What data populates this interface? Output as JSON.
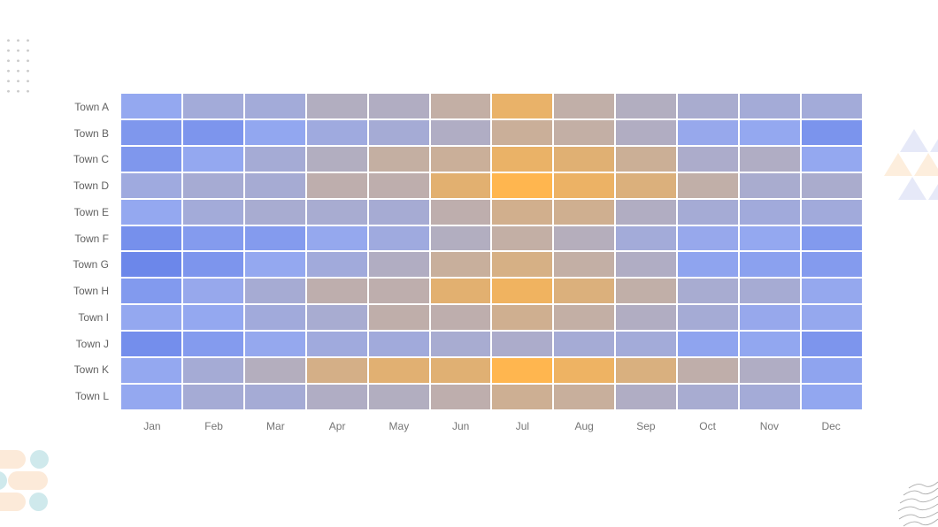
{
  "page": {
    "background": "#ffffff"
  },
  "chart_data": {
    "type": "heatmap",
    "title": "",
    "xlabel": "",
    "ylabel": "",
    "x_categories": [
      "Jan",
      "Feb",
      "Mar",
      "Apr",
      "May",
      "Jun",
      "Jul",
      "Aug",
      "Sep",
      "Oct",
      "Nov",
      "Dec"
    ],
    "y_categories": [
      "Town A",
      "Town B",
      "Town C",
      "Town D",
      "Town E",
      "Town F",
      "Town G",
      "Town H",
      "Town I",
      "Town J",
      "Town K",
      "Town L"
    ],
    "rows": [
      {
        "label": "Town A",
        "values": [
          25,
          36,
          36,
          48,
          47,
          58,
          82,
          57,
          48,
          41,
          37,
          36
        ]
      },
      {
        "label": "Town B",
        "values": [
          13,
          12,
          24,
          33,
          38,
          46,
          62,
          58,
          47,
          27,
          25,
          11
        ]
      },
      {
        "label": "Town C",
        "values": [
          13,
          25,
          38,
          48,
          59,
          62,
          83,
          75,
          63,
          43,
          46,
          25
        ]
      },
      {
        "label": "Town D",
        "values": [
          33,
          39,
          39,
          55,
          55,
          77,
          100,
          85,
          72,
          57,
          41,
          42
        ]
      },
      {
        "label": "Town E",
        "values": [
          25,
          36,
          40,
          40,
          39,
          55,
          66,
          65,
          47,
          38,
          35,
          35
        ]
      },
      {
        "label": "Town F",
        "values": [
          8,
          16,
          16,
          26,
          33,
          48,
          58,
          50,
          36,
          27,
          25,
          15
        ]
      },
      {
        "label": "Town G",
        "values": [
          2,
          12,
          25,
          35,
          47,
          61,
          69,
          58,
          46,
          22,
          20,
          16
        ]
      },
      {
        "label": "Town H",
        "values": [
          15,
          27,
          39,
          55,
          55,
          77,
          88,
          72,
          57,
          40,
          39,
          26
        ]
      },
      {
        "label": "Town I",
        "values": [
          25,
          25,
          35,
          40,
          56,
          55,
          65,
          58,
          47,
          38,
          27,
          26
        ]
      },
      {
        "label": "Town J",
        "values": [
          7,
          16,
          26,
          34,
          35,
          40,
          43,
          38,
          36,
          22,
          24,
          12
        ]
      },
      {
        "label": "Town K",
        "values": [
          25,
          38,
          49,
          68,
          76,
          75,
          100,
          86,
          71,
          56,
          46,
          22
        ]
      },
      {
        "label": "Town L",
        "values": [
          25,
          38,
          38,
          46,
          48,
          55,
          64,
          61,
          46,
          40,
          37,
          24
        ]
      }
    ],
    "value_range": [
      0,
      100
    ],
    "color_scale": [
      {
        "stop": 0.0,
        "color": "#6884ea"
      },
      {
        "stop": 0.25,
        "color": "#94a8f0"
      },
      {
        "stop": 0.5,
        "color": "#b5aebc"
      },
      {
        "stop": 0.75,
        "color": "#e0b073"
      },
      {
        "stop": 1.0,
        "color": "#ffb64f"
      }
    ],
    "grid_line_color": "#ffffff",
    "x_axis_label_color": "#757575",
    "y_axis_label_color": "#616161",
    "legend": "none"
  },
  "decorations": {
    "dot_grid": {
      "icon": "dot-grid-icon",
      "color": "#cccccc",
      "rows": 6,
      "cols": 3
    },
    "triangles": {
      "icon": "triangles-icon",
      "lavender": "#e6e9f8",
      "peach": "#fdeedd"
    },
    "pills": {
      "icon": "pills-icon",
      "peach": "#fcead9",
      "teal": "#cfe9ec"
    },
    "waves": {
      "icon": "waves-icon",
      "color": "#ababab",
      "count": 6
    }
  }
}
